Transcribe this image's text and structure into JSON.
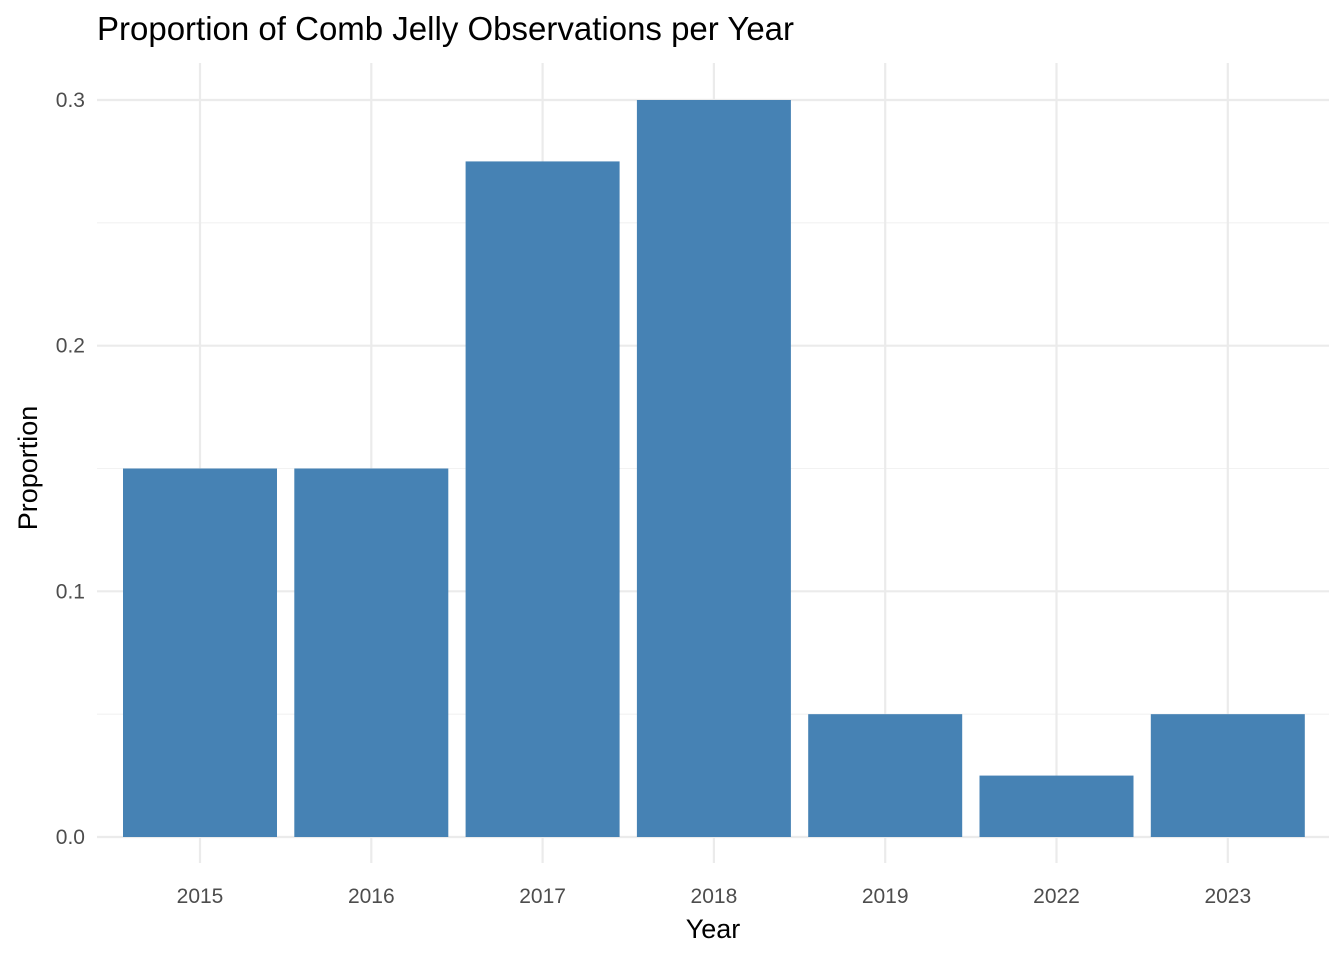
{
  "chart_data": {
    "type": "bar",
    "title": "Proportion of Comb Jelly Observations per Year",
    "xlabel": "Year",
    "ylabel": "Proportion",
    "categories": [
      "2015",
      "2016",
      "2017",
      "2018",
      "2019",
      "2022",
      "2023"
    ],
    "values": [
      0.15,
      0.15,
      0.275,
      0.3,
      0.05,
      0.025,
      0.05
    ],
    "ylim": [
      0,
      0.3
    ],
    "yticks": [
      0.0,
      0.1,
      0.2,
      0.3
    ],
    "ytick_labels": [
      "0.0",
      "0.1",
      "0.2",
      "0.3"
    ],
    "bar_color": "#4682b4",
    "grid": true,
    "legend": "none"
  }
}
